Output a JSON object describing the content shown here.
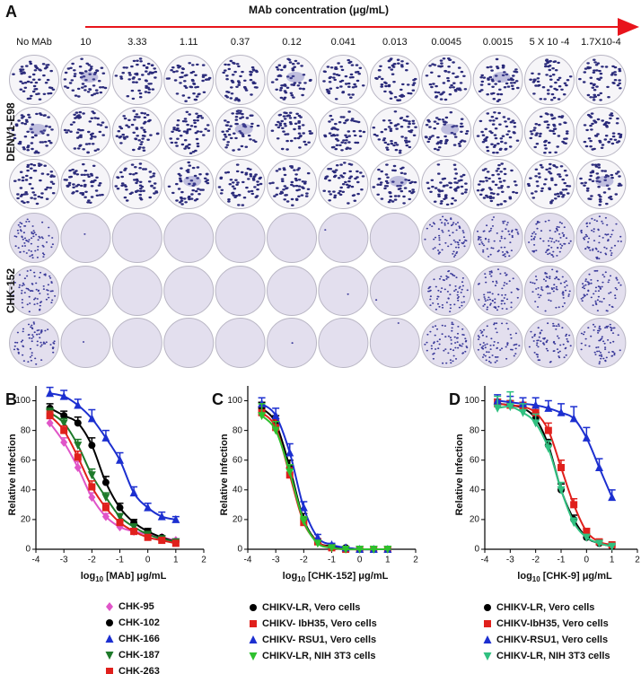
{
  "panel_a": {
    "label": "A",
    "title": "MAb concentration (μg/mL)",
    "columns": [
      "No MAb",
      "10",
      "3.33",
      "1.11",
      "0.37",
      "0.12",
      "0.041",
      "0.013",
      "0.0045",
      "0.0015",
      "5 X 10 -4",
      "1.7X10-4"
    ],
    "rows": [
      "DENV1-E98",
      "CHK-152"
    ]
  },
  "chart_data": [
    {
      "type": "line",
      "label": "B",
      "ylabel": "Relative Infection",
      "xlabel": {
        "base": "log",
        "sub": "10",
        "rest": "[MAb] μg/mL"
      },
      "x": [
        -3.5,
        -3,
        -2.5,
        -2,
        -1.5,
        -1,
        -0.5,
        0,
        0.5,
        1
      ],
      "xlim": [
        -4,
        2
      ],
      "xticks": [
        -4,
        -3,
        -2,
        -1,
        0,
        1,
        2
      ],
      "ylim": [
        0,
        110
      ],
      "yticks": [
        0,
        20,
        40,
        60,
        80,
        100
      ],
      "series": [
        {
          "name": "CHK-95",
          "color": "#e055c8",
          "marker": "diamond",
          "values": [
            85,
            72,
            55,
            35,
            22,
            15,
            12,
            10,
            8,
            6
          ],
          "errors": [
            3,
            3,
            4,
            3,
            2,
            2,
            2,
            2,
            1,
            1
          ]
        },
        {
          "name": "CHK-102",
          "color": "#000000",
          "marker": "circle",
          "values": [
            95,
            90,
            85,
            70,
            45,
            28,
            18,
            12,
            8,
            5
          ],
          "errors": [
            3,
            3,
            4,
            5,
            4,
            3,
            2,
            2,
            1,
            1
          ]
        },
        {
          "name": "CHK-166",
          "color": "#1c2fd0",
          "marker": "triangle",
          "values": [
            105,
            103,
            97,
            88,
            75,
            60,
            38,
            28,
            22,
            20
          ],
          "errors": [
            4,
            4,
            4,
            6,
            5,
            5,
            4,
            3,
            3,
            2
          ]
        },
        {
          "name": "CHK-187",
          "color": "#1e7a2a",
          "marker": "triangle-down",
          "values": [
            92,
            85,
            70,
            50,
            35,
            22,
            15,
            10,
            7,
            5
          ],
          "errors": [
            3,
            3,
            4,
            4,
            3,
            2,
            2,
            2,
            1,
            1
          ]
        },
        {
          "name": "CHK-263",
          "color": "#e0201c",
          "marker": "square",
          "values": [
            90,
            80,
            62,
            42,
            28,
            18,
            12,
            8,
            6,
            4
          ],
          "errors": [
            3,
            3,
            4,
            4,
            3,
            2,
            2,
            1,
            1,
            1
          ]
        }
      ]
    },
    {
      "type": "line",
      "label": "C",
      "ylabel": "Relative Infection",
      "xlabel": {
        "base": "log",
        "sub": "10",
        "rest": "[CHK-152] μg/mL"
      },
      "x": [
        -3.5,
        -3,
        -2.5,
        -2,
        -1.5,
        -1,
        -0.5,
        0,
        0.5,
        1
      ],
      "xlim": [
        -4,
        2
      ],
      "xticks": [
        -4,
        -3,
        -2,
        -1,
        0,
        1,
        2
      ],
      "ylim": [
        0,
        110
      ],
      "yticks": [
        0,
        20,
        40,
        60,
        80,
        100
      ],
      "series": [
        {
          "name": "CHIKV-LR, Vero cells",
          "color": "#000000",
          "marker": "circle",
          "values": [
            95,
            85,
            55,
            20,
            5,
            2,
            1,
            0,
            0,
            0
          ],
          "errors": [
            4,
            5,
            5,
            4,
            2,
            1,
            1,
            0,
            0,
            0
          ]
        },
        {
          "name": "CHIKV- IbH35, Vero cells",
          "color": "#e0201c",
          "marker": "square",
          "values": [
            92,
            82,
            50,
            18,
            5,
            1,
            0,
            0,
            0,
            0
          ],
          "errors": [
            4,
            5,
            5,
            3,
            2,
            1,
            0,
            0,
            0,
            0
          ]
        },
        {
          "name": "CHIKV- RSU1, Vero cells",
          "color": "#1c2fd0",
          "marker": "triangle",
          "values": [
            98,
            90,
            65,
            28,
            8,
            3,
            1,
            0,
            0,
            0
          ],
          "errors": [
            4,
            5,
            6,
            4,
            2,
            1,
            1,
            0,
            0,
            0
          ]
        },
        {
          "name": "CHIKV-LR, NIH 3T3 cells",
          "color": "#2ec02e",
          "marker": "triangle-down",
          "values": [
            90,
            80,
            52,
            19,
            4,
            1,
            0,
            0,
            0,
            0
          ],
          "errors": [
            8,
            6,
            5,
            3,
            2,
            1,
            0,
            0,
            0,
            0
          ]
        }
      ]
    },
    {
      "type": "line",
      "label": "D",
      "ylabel": "Relative Infection",
      "xlabel": {
        "base": "log",
        "sub": "10",
        "rest": "[CHK-9] μg/mL"
      },
      "x": [
        -3.5,
        -3,
        -2.5,
        -2,
        -1.5,
        -1,
        -0.5,
        0,
        0.5,
        1
      ],
      "xlim": [
        -4,
        2
      ],
      "xticks": [
        -4,
        -3,
        -2,
        -1,
        0,
        1,
        2
      ],
      "ylim": [
        0,
        110
      ],
      "yticks": [
        0,
        20,
        40,
        60,
        80,
        100
      ],
      "series": [
        {
          "name": "CHIKV-LR, Vero cells",
          "color": "#000000",
          "marker": "circle",
          "values": [
            98,
            97,
            95,
            88,
            70,
            40,
            20,
            8,
            4,
            2
          ],
          "errors": [
            3,
            3,
            3,
            4,
            4,
            4,
            3,
            2,
            1,
            1
          ]
        },
        {
          "name": "CHIKV-IbH35, Vero cells",
          "color": "#e0201c",
          "marker": "square",
          "values": [
            98,
            97,
            96,
            92,
            80,
            55,
            30,
            12,
            5,
            3
          ],
          "errors": [
            3,
            3,
            3,
            4,
            5,
            5,
            4,
            2,
            1,
            1
          ]
        },
        {
          "name": "CHIKV-RSU1, Vero cells",
          "color": "#1c2fd0",
          "marker": "triangle",
          "values": [
            100,
            99,
            98,
            97,
            95,
            92,
            88,
            75,
            55,
            35
          ],
          "errors": [
            4,
            4,
            4,
            5,
            5,
            6,
            8,
            7,
            6,
            5
          ]
        },
        {
          "name": "CHIKV-LR, NIH 3T3 cells",
          "color": "#30c080",
          "marker": "triangle-down",
          "values": [
            95,
            96,
            92,
            85,
            68,
            40,
            18,
            8,
            4,
            2
          ],
          "errors": [
            8,
            10,
            6,
            6,
            5,
            5,
            3,
            2,
            1,
            1
          ]
        }
      ]
    }
  ]
}
